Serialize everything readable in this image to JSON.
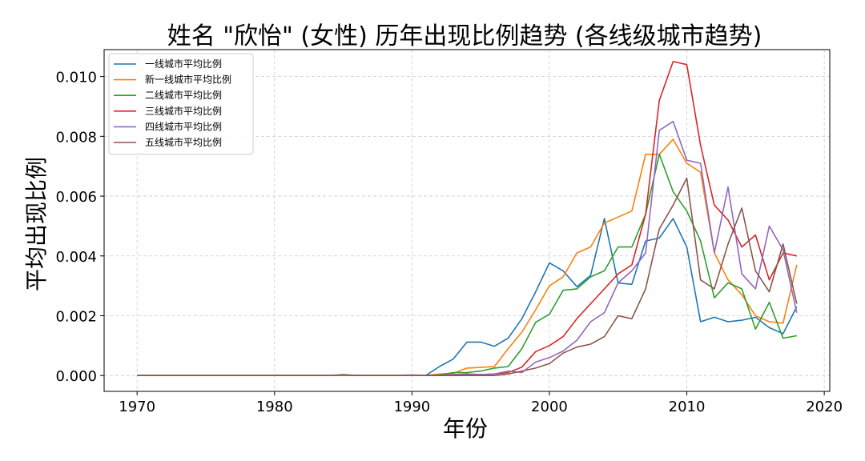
{
  "chart_data": {
    "type": "line",
    "title": "姓名 \"欣怡\" (女性) 历年出现比例趋势 (各线级城市趋势)",
    "xlabel": "年份",
    "ylabel": "平均出现比例",
    "xlim": [
      1967.6,
      2020.4
    ],
    "ylim": [
      -0.00053,
      0.0109
    ],
    "xticks": [
      1970,
      1980,
      1990,
      2000,
      2010,
      2020
    ],
    "yticks": [
      0.0,
      0.002,
      0.004,
      0.006,
      0.008,
      0.01
    ],
    "ytick_labels": [
      "0.000",
      "0.002",
      "0.004",
      "0.006",
      "0.008",
      "0.010"
    ],
    "grid": true,
    "legend_position": "top-left",
    "x": [
      1970,
      1971,
      1972,
      1973,
      1974,
      1975,
      1976,
      1977,
      1978,
      1979,
      1980,
      1981,
      1982,
      1983,
      1984,
      1985,
      1986,
      1987,
      1988,
      1989,
      1990,
      1991,
      1992,
      1993,
      1994,
      1995,
      1996,
      1997,
      1998,
      1999,
      2000,
      2001,
      2002,
      2003,
      2004,
      2005,
      2006,
      2007,
      2008,
      2009,
      2010,
      2011,
      2012,
      2013,
      2014,
      2015,
      2016,
      2017,
      2018
    ],
    "series": [
      {
        "name": "一线城市平均比例",
        "color": "#1f77b4",
        "values": [
          0,
          0,
          0,
          0,
          0,
          0,
          0,
          0,
          0,
          0,
          0,
          0,
          0,
          0,
          0,
          0,
          0,
          0,
          0,
          0,
          0,
          0,
          0.0003,
          0.00055,
          0.00112,
          0.00112,
          0.00098,
          0.00125,
          0.0019,
          0.0028,
          0.00377,
          0.0035,
          0.00297,
          0.00335,
          0.00525,
          0.0031,
          0.00305,
          0.0045,
          0.0046,
          0.00525,
          0.0043,
          0.0018,
          0.00195,
          0.0018,
          0.00185,
          0.00195,
          0.0016,
          0.0014,
          0.0023
        ]
      },
      {
        "name": "新一线城市平均比例",
        "color": "#ff7f0e",
        "values": [
          0,
          0,
          0,
          0,
          0,
          0,
          0,
          0,
          0,
          0,
          0,
          0,
          0,
          0,
          0,
          0,
          0,
          0,
          0,
          0,
          0,
          0,
          5e-05,
          7e-05,
          0.00025,
          0.00027,
          0.0003,
          0.0009,
          0.00145,
          0.0022,
          0.003,
          0.0033,
          0.0041,
          0.0043,
          0.0051,
          0.0053,
          0.0055,
          0.0074,
          0.0074,
          0.0079,
          0.0071,
          0.0068,
          0.0041,
          0.0032,
          0.0027,
          0.002,
          0.0018,
          0.00175,
          0.0037
        ]
      },
      {
        "name": "二线城市平均比例",
        "color": "#2ca02c",
        "values": [
          0,
          0,
          0,
          0,
          0,
          0,
          0,
          0,
          0,
          0,
          0,
          0,
          0,
          0,
          0,
          0,
          0,
          0,
          0,
          0,
          0,
          0,
          2e-05,
          0.0001,
          0.0001,
          0.00015,
          0.00025,
          0.0003,
          0.0009,
          0.00178,
          0.00205,
          0.00285,
          0.0029,
          0.0033,
          0.0035,
          0.0043,
          0.0043,
          0.0054,
          0.0074,
          0.00615,
          0.0055,
          0.0045,
          0.0026,
          0.0031,
          0.0029,
          0.00155,
          0.00245,
          0.00125,
          0.00133
        ]
      },
      {
        "name": "三线城市平均比例",
        "color": "#d62728",
        "values": [
          0,
          0,
          0,
          0,
          0,
          0,
          0,
          0,
          0,
          0,
          0,
          0,
          0,
          0,
          0,
          0,
          0,
          0,
          0,
          0,
          0,
          0,
          0,
          3e-05,
          5e-05,
          3e-05,
          5e-05,
          0.0001,
          0.00028,
          0.0008,
          0.001,
          0.0013,
          0.0019,
          0.0024,
          0.0029,
          0.0034,
          0.0037,
          0.0054,
          0.0092,
          0.0105,
          0.0104,
          0.0077,
          0.0057,
          0.0052,
          0.0043,
          0.0047,
          0.0032,
          0.0041,
          0.004
        ]
      },
      {
        "name": "四线城市平均比例",
        "color": "#9467bd",
        "values": [
          0,
          0,
          0,
          0,
          0,
          0,
          0,
          0,
          0,
          0,
          0,
          0,
          0,
          0,
          0,
          0,
          0,
          0,
          0,
          0,
          0,
          0,
          0,
          3e-05,
          3e-05,
          3e-05,
          5e-05,
          0.00015,
          0.0001,
          0.00045,
          0.0006,
          0.00082,
          0.00118,
          0.0018,
          0.0021,
          0.0031,
          0.0035,
          0.0041,
          0.0082,
          0.0085,
          0.0072,
          0.0071,
          0.0041,
          0.0063,
          0.0034,
          0.0029,
          0.005,
          0.0042,
          0.0021
        ]
      },
      {
        "name": "五线城市平均比例",
        "color": "#8c564b",
        "values": [
          0,
          0,
          0,
          0,
          0,
          0,
          0,
          0,
          0,
          0,
          0,
          0,
          0,
          0,
          0,
          3e-05,
          0,
          0,
          0,
          0,
          2e-05,
          0,
          0,
          0,
          0,
          0,
          0,
          5e-05,
          0.00015,
          0.00025,
          0.0004,
          0.00075,
          0.00095,
          0.00105,
          0.0013,
          0.002,
          0.0019,
          0.0029,
          0.0049,
          0.0057,
          0.0066,
          0.0032,
          0.0029,
          0.0044,
          0.0056,
          0.0035,
          0.0028,
          0.0044,
          0.0024
        ]
      }
    ]
  }
}
